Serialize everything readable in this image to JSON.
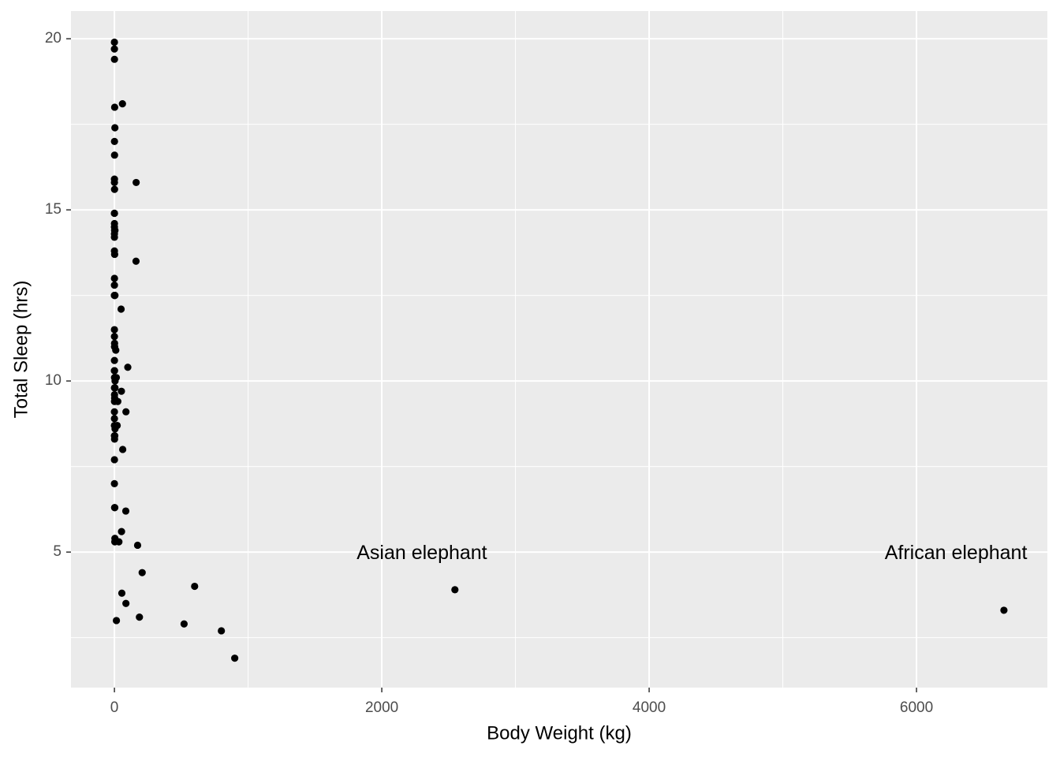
{
  "chart_data": {
    "type": "scatter",
    "x_label": "Body Weight (kg)",
    "y_label": "Total Sleep (hrs)",
    "x": [
      50,
      0.48,
      1.35,
      0.019,
      600,
      3.85,
      20.49,
      0.045,
      14,
      14.8,
      33.5,
      0.728,
      4.75,
      0.42,
      0.06,
      1,
      0.005,
      3.5,
      2.95,
      1.7,
      2547,
      0.023,
      521,
      187,
      0.77,
      10,
      0.071,
      3.3,
      0.2,
      900,
      800,
      85,
      2.625,
      62,
      1.67,
      6654,
      0.37,
      6.8,
      0.053,
      0.12,
      0.035,
      0.022,
      0.01,
      0.266,
      1.4,
      0.21,
      0.028,
      2.5,
      55.5,
      52.2,
      162.564,
      100,
      161.499,
      25.235,
      0.55,
      1.1,
      0.021,
      1.62,
      86,
      53.18,
      1.1,
      60,
      3.6,
      0.32,
      0.044,
      0.743,
      0.075,
      0.148,
      0.122,
      0.92,
      0.101,
      0.205,
      86.25,
      4.5,
      0.112,
      207.501,
      0.9,
      0.104,
      173.33,
      1.41,
      3.38,
      4.23
    ],
    "values": [
      12.1,
      17,
      14.4,
      14.9,
      4,
      14.4,
      8.7,
      7,
      10.1,
      3,
      5.3,
      9.4,
      10,
      12.5,
      10.3,
      8.3,
      9.1,
      17.4,
      5.3,
      18,
      3.9,
      19.7,
      2.9,
      3.1,
      10.1,
      10.9,
      14.9,
      12.5,
      9.8,
      1.9,
      2.7,
      6.2,
      6.3,
      8,
      9.5,
      3.3,
      19.4,
      10.1,
      14.2,
      14.3,
      12.8,
      12.5,
      19.9,
      14.6,
      11,
      7.7,
      14.5,
      8.4,
      3.8,
      9.7,
      15.8,
      10.4,
      13.5,
      9.4,
      10.3,
      11,
      11.5,
      13.7,
      3.5,
      5.6,
      11.1,
      18.1,
      5.4,
      13,
      8.7,
      9.6,
      8.4,
      11.3,
      10.6,
      16.6,
      13.8,
      15.9,
      9.1,
      8.6,
      15.8,
      4.4,
      15.6,
      8.9,
      5.2,
      6.3,
      12.5,
      9.8
    ],
    "color": "#000000",
    "xlim": [
      -325,
      6979
    ],
    "ylim": [
      1.04,
      20.81
    ],
    "xticks": [
      0,
      2000,
      4000,
      6000
    ],
    "yticks": [
      5,
      10,
      15,
      20
    ],
    "x_minor_grid": [
      1000,
      3000,
      5000
    ],
    "y_minor_grid": [
      2.5,
      7.5,
      12.5,
      17.5
    ],
    "grid": true,
    "annotations": [
      {
        "text": "Asian elephant",
        "x": 2300,
        "y": 4.95
      },
      {
        "text": "African elephant",
        "x": 6295,
        "y": 4.95
      }
    ]
  }
}
